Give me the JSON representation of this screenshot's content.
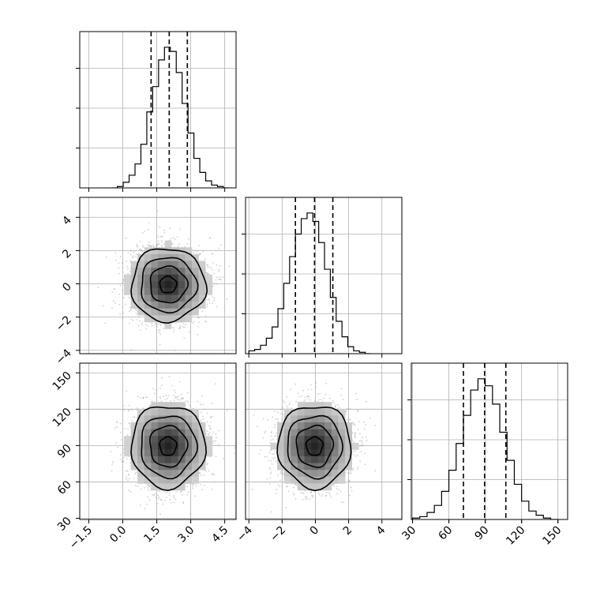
{
  "chart_data": {
    "type": "corner",
    "title": "",
    "parameters": [
      {
        "label": "",
        "mean": 2.0,
        "sd": 0.82,
        "range": [
          -1.9,
          5.0
        ],
        "ticks": [
          -1.5,
          0.0,
          1.5,
          3.0,
          4.5
        ],
        "tick_labels": [
          "−1.5",
          "0.0",
          "1.5",
          "3.0",
          "4.5"
        ],
        "quantiles": [
          1.25,
          2.05,
          2.85
        ]
      },
      {
        "label": "",
        "mean": -0.05,
        "sd": 1.1,
        "range": [
          -4.2,
          5.2
        ],
        "ticks": [
          -4,
          -2,
          0,
          2,
          4
        ],
        "tick_labels": [
          "−4",
          "−2",
          "0",
          "2",
          "4"
        ],
        "quantiles": [
          -1.2,
          -0.05,
          1.05
        ]
      },
      {
        "label": "",
        "mean": 89.5,
        "sd": 17.0,
        "range": [
          29,
          158
        ],
        "ticks": [
          30,
          60,
          90,
          120,
          150
        ],
        "tick_labels": [
          "30",
          "60",
          "90",
          "120",
          "150"
        ],
        "quantiles": [
          72,
          89.5,
          107
        ]
      }
    ],
    "histograms": [
      {
        "param": 0,
        "bin_edges": [
          -0.5,
          -0.24,
          0.02,
          0.28,
          0.54,
          0.8,
          1.06,
          1.32,
          1.58,
          1.84,
          2.1,
          2.36,
          2.62,
          2.88,
          3.14,
          3.4,
          3.66,
          3.92,
          4.18,
          4.44,
          4.7
        ],
        "relative_counts": [
          0.0,
          0.01,
          0.04,
          0.09,
          0.17,
          0.31,
          0.54,
          0.72,
          0.91,
          1.0,
          0.97,
          0.82,
          0.6,
          0.39,
          0.21,
          0.11,
          0.05,
          0.02,
          0.01,
          0.0
        ]
      },
      {
        "param": 1,
        "bin_edges": [
          -4.0,
          -3.65,
          -3.3,
          -2.95,
          -2.6,
          -2.25,
          -1.9,
          -1.55,
          -1.2,
          -0.85,
          -0.5,
          -0.15,
          0.2,
          0.55,
          0.9,
          1.25,
          1.6,
          1.95,
          2.3,
          2.65,
          3.0,
          3.35
        ],
        "relative_counts": [
          0.02,
          0.03,
          0.06,
          0.11,
          0.19,
          0.32,
          0.5,
          0.69,
          0.85,
          0.96,
          1.0,
          0.94,
          0.79,
          0.6,
          0.4,
          0.23,
          0.12,
          0.05,
          0.02,
          0.01,
          0.0
        ]
      },
      {
        "param": 2,
        "bin_edges": [
          30,
          36,
          42,
          48,
          54,
          60,
          66,
          72,
          78,
          84,
          90,
          96,
          102,
          108,
          114,
          120,
          126,
          132,
          138,
          144,
          150
        ],
        "relative_counts": [
          0.01,
          0.02,
          0.05,
          0.1,
          0.2,
          0.35,
          0.54,
          0.74,
          0.92,
          1.0,
          0.95,
          0.82,
          0.62,
          0.42,
          0.25,
          0.13,
          0.06,
          0.03,
          0.01,
          0.0
        ]
      }
    ],
    "pair_plots": [
      {
        "x_param": 0,
        "y_param": 1,
        "sample_cloud_center": [
          2.0,
          -0.05
        ],
        "contours": 4
      },
      {
        "x_param": 0,
        "y_param": 2,
        "sample_cloud_center": [
          2.0,
          89.5
        ],
        "contours": 4
      },
      {
        "x_param": 1,
        "y_param": 2,
        "sample_cloud_center": [
          -0.05,
          89.5
        ],
        "contours": 4
      }
    ],
    "grid": true,
    "legend": "none"
  }
}
